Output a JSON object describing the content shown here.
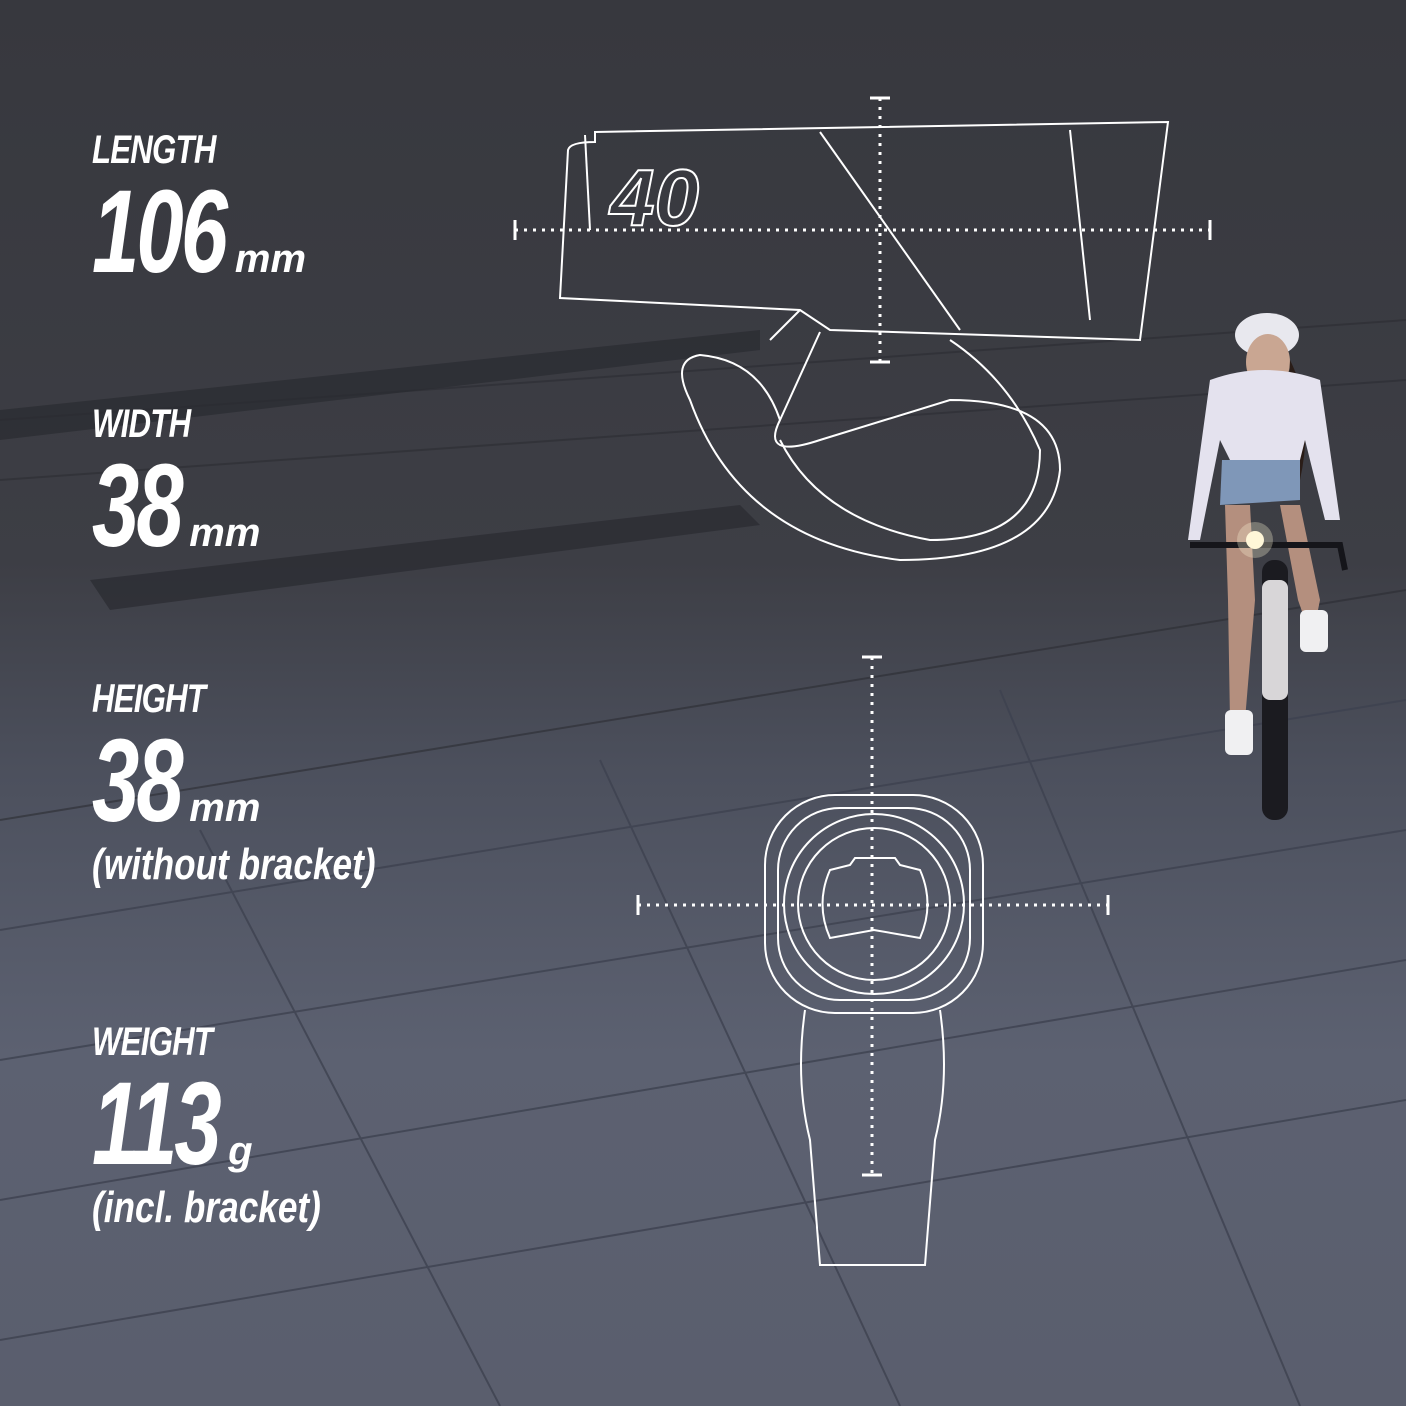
{
  "specs": [
    {
      "label": "LENGTH",
      "value": "106",
      "unit": "mm",
      "note": ""
    },
    {
      "label": "WIDTH",
      "value": "38",
      "unit": "mm",
      "note": ""
    },
    {
      "label": "HEIGHT",
      "value": "38",
      "unit": "mm",
      "note": "(without  bracket)"
    },
    {
      "label": "WEIGHT",
      "value": "113",
      "unit": "g",
      "note": "(incl. bracket)"
    }
  ],
  "product_logo": "40",
  "colors": {
    "text": "#ffffff",
    "line": "#ffffff",
    "background": "#45474f"
  }
}
